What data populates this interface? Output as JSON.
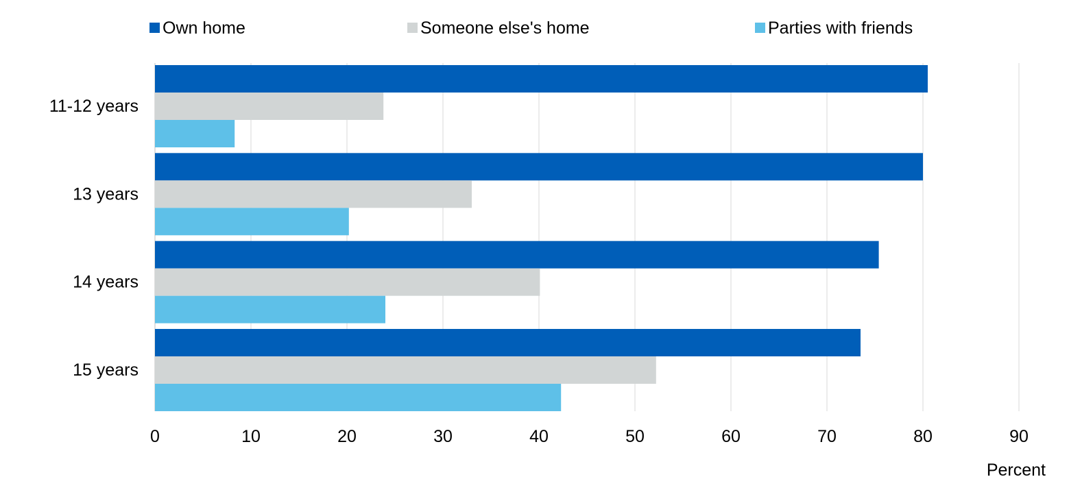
{
  "chart_data": {
    "type": "bar",
    "orientation": "horizontal",
    "categories": [
      "11-12 years",
      "13 years",
      "14 years",
      "15 years"
    ],
    "series": [
      {
        "name": "Own home",
        "color": "#005EB8",
        "values": [
          80.5,
          80.0,
          75.4,
          73.5
        ]
      },
      {
        "name": "Someone else's home",
        "color": "#D1D5D5",
        "values": [
          23.8,
          33.0,
          40.1,
          52.2
        ]
      },
      {
        "name": "Parties with friends",
        "color": "#5EC0E8",
        "values": [
          8.3,
          20.2,
          24.0,
          42.3
        ]
      }
    ],
    "xlim": [
      0,
      90
    ],
    "xticks": [
      0,
      10,
      20,
      30,
      40,
      50,
      60,
      70,
      80,
      90
    ],
    "xlabel": "Percent",
    "ylabel": "",
    "title": "",
    "grid": "vertical",
    "legend_position": "top"
  }
}
